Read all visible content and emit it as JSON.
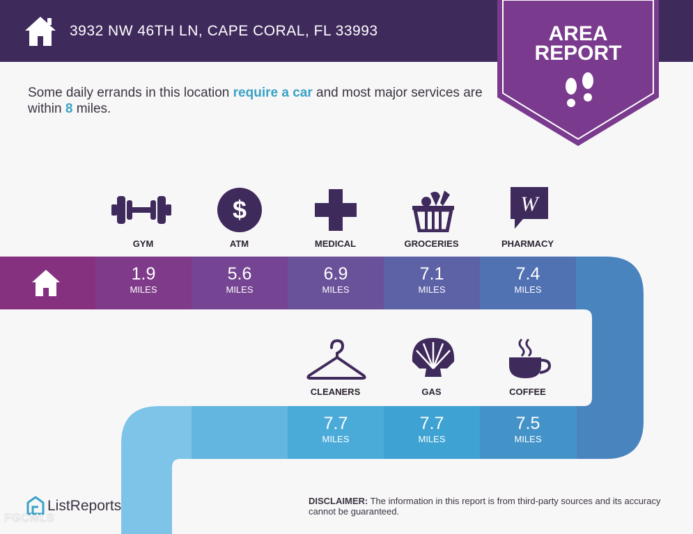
{
  "header": {
    "address": "3932 NW 46TH LN, CAPE CORAL, FL 33993"
  },
  "badge": {
    "line1": "AREA",
    "line2": "REPORT"
  },
  "summary": {
    "part1": "Some daily errands in this location ",
    "highlight1": "require a car",
    "part2": " and most major services are within ",
    "highlight2": "8",
    "part3": " miles."
  },
  "top_row": [
    {
      "label": "GYM",
      "value": "1.9",
      "unit": "MILES",
      "icon": "dumbbell-icon"
    },
    {
      "label": "ATM",
      "value": "5.6",
      "unit": "MILES",
      "icon": "dollar-coin-icon"
    },
    {
      "label": "MEDICAL",
      "value": "6.9",
      "unit": "MILES",
      "icon": "medical-cross-icon"
    },
    {
      "label": "GROCERIES",
      "value": "7.1",
      "unit": "MILES",
      "icon": "grocery-basket-icon"
    },
    {
      "label": "PHARMACY",
      "value": "7.4",
      "unit": "MILES",
      "icon": "walgreens-logo-icon"
    }
  ],
  "bottom_row": [
    {
      "label": "CLEANERS",
      "value": "7.7",
      "unit": "MILES",
      "icon": "hanger-icon"
    },
    {
      "label": "GAS",
      "value": "7.7",
      "unit": "MILES",
      "icon": "shell-logo-icon"
    },
    {
      "label": "COFFEE",
      "value": "7.5",
      "unit": "MILES",
      "icon": "coffee-cup-icon"
    }
  ],
  "footer": {
    "logo_text": "ListReports",
    "mls": "FGCMLS",
    "disclaimer_title": "DISCLAIMER:",
    "disclaimer_text": " The information in this report is from third-party sources and its accuracy cannot be guaranteed."
  },
  "colors": {
    "header_bg": "#3f2a5c",
    "badge_bg": "#7a3a8e",
    "highlight": "#3aa2c5"
  }
}
